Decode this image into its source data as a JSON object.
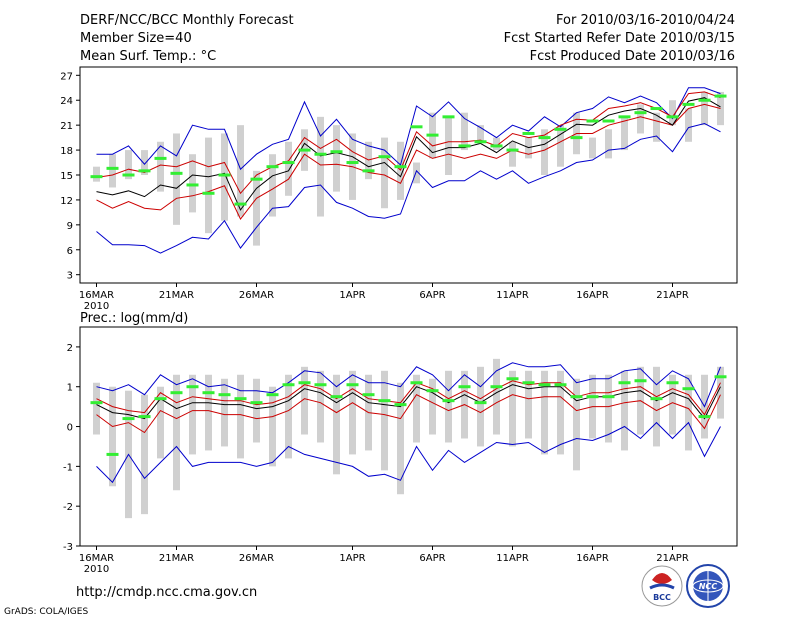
{
  "header": {
    "title": "DERF/NCC/BCC Monthly Forecast",
    "member_size": "Member Size=40",
    "variable": "Mean Surf. Temp.: °C",
    "period": "For 2010/03/16-2010/04/24",
    "start_date": "Fcst Started Refer Date 2010/03/15",
    "produced_date": "Fcst Produced Date 2010/03/16"
  },
  "footer": {
    "url": "http://cmdp.ncc.cma.gov.cn",
    "credit": "GrADS: COLA/IGES",
    "logo_left_text": "BCC",
    "logo_right_text": "NCC"
  },
  "colors": {
    "whisker": "#d0d0d0",
    "mean": "#000000",
    "band_inner": "#cc0000",
    "band_outer": "#0000cc",
    "median": "#33ee33"
  },
  "chart_data": [
    {
      "type": "line",
      "title": "Mean Surf. Temp.: °C",
      "ylim": [
        2,
        28
      ],
      "yticks": [
        3,
        6,
        9,
        12,
        15,
        18,
        21,
        24,
        27
      ],
      "xtick_labels": [
        "16MAR",
        "21MAR",
        "26MAR",
        "1APR",
        "6APR",
        "11APR",
        "16APR",
        "21APR"
      ],
      "year_label": "2010",
      "x": [
        1,
        2,
        3,
        4,
        5,
        6,
        7,
        8,
        9,
        10,
        11,
        12,
        13,
        14,
        15,
        16,
        17,
        18,
        19,
        20,
        21,
        22,
        23,
        24,
        25,
        26,
        27,
        28,
        29,
        30,
        31,
        32,
        33,
        34,
        35,
        36,
        37,
        38,
        39,
        40
      ],
      "series": [
        {
          "name": "whisker_low",
          "values": [
            14.2,
            13.5,
            14.5,
            15.0,
            13.0,
            9.0,
            10.5,
            8.0,
            9.5,
            10.0,
            6.5,
            10.0,
            12.5,
            15.5,
            10.0,
            13.0,
            12.0,
            14.5,
            11.0,
            12.0,
            14.0,
            17.0,
            15.0,
            18.0,
            19.0,
            18.0,
            16.0,
            17.0,
            15.0,
            16.0,
            17.5,
            17.0,
            17.0,
            18.0,
            20.0,
            19.0,
            21.0,
            19.0,
            21.0,
            21.0
          ]
        },
        {
          "name": "whisker_high",
          "values": [
            16.0,
            17.5,
            18.0,
            18.0,
            19.0,
            20.0,
            17.5,
            19.5,
            20.0,
            21.0,
            15.5,
            17.5,
            19.0,
            20.5,
            22.0,
            21.0,
            20.0,
            19.0,
            19.5,
            19.0,
            16.5,
            22.5,
            22.0,
            22.5,
            21.0,
            19.5,
            19.0,
            19.5,
            20.5,
            21.0,
            22.5,
            19.5,
            20.5,
            22.0,
            23.5,
            22.5,
            24.0,
            23.0,
            25.0,
            25.0
          ]
        },
        {
          "name": "lower_bound",
          "values": [
            8.2,
            6.6,
            6.6,
            6.5,
            5.6,
            6.5,
            7.5,
            7.3,
            9.5,
            6.2,
            8.7,
            11.0,
            11.2,
            13.5,
            13.8,
            11.7,
            11.0,
            10.0,
            9.8,
            10.3,
            15.5,
            13.5,
            14.3,
            14.3,
            15.5,
            14.5,
            15.5,
            14.0,
            14.8,
            15.5,
            16.5,
            16.8,
            18.0,
            18.2,
            19.3,
            19.7,
            17.8,
            20.7,
            21.2,
            20.2
          ]
        },
        {
          "name": "inner_low",
          "values": [
            12.0,
            11.0,
            11.8,
            11.0,
            10.8,
            12.2,
            12.5,
            13.0,
            13.7,
            9.7,
            12.2,
            13.3,
            14.5,
            17.5,
            16.2,
            16.3,
            16.0,
            15.3,
            15.0,
            14.0,
            18.0,
            17.0,
            17.5,
            17.0,
            17.5,
            17.0,
            18.0,
            17.5,
            18.0,
            19.0,
            20.0,
            20.0,
            21.0,
            21.5,
            22.0,
            21.5,
            21.0,
            23.0,
            23.5,
            23.0
          ]
        },
        {
          "name": "mean",
          "values": [
            13.0,
            12.6,
            13.1,
            12.4,
            13.8,
            13.4,
            15.0,
            14.8,
            15.2,
            10.8,
            13.4,
            14.9,
            15.5,
            18.8,
            17.3,
            17.7,
            17.2,
            16.0,
            16.5,
            14.8,
            19.6,
            17.7,
            18.3,
            18.3,
            18.8,
            17.7,
            19.1,
            18.3,
            18.7,
            19.9,
            21.1,
            21.0,
            22.2,
            22.7,
            23.0,
            22.2,
            21.0,
            23.9,
            24.3,
            23.2
          ]
        },
        {
          "name": "inner_high",
          "values": [
            14.7,
            15.0,
            15.7,
            15.3,
            16.2,
            16.0,
            16.7,
            16.0,
            16.5,
            12.8,
            15.0,
            16.0,
            16.7,
            19.5,
            18.2,
            19.3,
            17.8,
            16.8,
            17.3,
            15.6,
            20.2,
            18.5,
            19.0,
            19.0,
            19.2,
            18.5,
            20.0,
            19.5,
            19.8,
            21.0,
            21.7,
            21.6,
            23.0,
            23.3,
            23.7,
            23.0,
            22.0,
            24.8,
            25.0,
            24.3
          ]
        },
        {
          "name": "upper_bound",
          "values": [
            17.5,
            17.5,
            18.5,
            16.3,
            18.5,
            17.3,
            21.0,
            20.5,
            20.5,
            15.7,
            17.5,
            18.7,
            19.3,
            23.8,
            19.7,
            21.7,
            19.3,
            18.5,
            18.0,
            16.2,
            23.3,
            22.0,
            23.8,
            21.8,
            20.7,
            19.5,
            21.0,
            20.3,
            22.0,
            20.8,
            22.5,
            23.0,
            24.4,
            23.7,
            24.5,
            23.7,
            21.8,
            25.5,
            25.5,
            24.8
          ]
        },
        {
          "name": "median",
          "values": [
            14.8,
            15.8,
            15.0,
            15.5,
            17.0,
            15.2,
            13.8,
            12.8,
            15.0,
            11.5,
            14.5,
            16.0,
            16.5,
            18.0,
            17.5,
            17.8,
            16.5,
            15.5,
            17.2,
            16.0,
            20.8,
            19.8,
            22.0,
            18.5,
            19.0,
            18.5,
            18.0,
            20.0,
            19.5,
            20.5,
            19.5,
            21.5,
            21.5,
            22.0,
            22.5,
            23.0,
            22.0,
            23.5,
            24.0,
            24.5
          ]
        }
      ]
    },
    {
      "type": "line",
      "title": "Prec.: log(mm/d)",
      "ylim": [
        -3,
        2.5
      ],
      "yticks": [
        -3,
        -2,
        -1,
        0,
        1,
        2
      ],
      "xtick_labels": [
        "16MAR",
        "21MAR",
        "26MAR",
        "1APR",
        "6APR",
        "11APR",
        "16APR",
        "21APR"
      ],
      "year_label": "2010",
      "x": [
        1,
        2,
        3,
        4,
        5,
        6,
        7,
        8,
        9,
        10,
        11,
        12,
        13,
        14,
        15,
        16,
        17,
        18,
        19,
        20,
        21,
        22,
        23,
        24,
        25,
        26,
        27,
        28,
        29,
        30,
        31,
        32,
        33,
        34,
        35,
        36,
        37,
        38,
        39,
        40
      ],
      "series": [
        {
          "name": "whisker_low",
          "values": [
            -0.2,
            -1.5,
            -2.3,
            -2.2,
            -0.8,
            -1.6,
            -0.7,
            -0.6,
            -0.5,
            -0.8,
            -0.4,
            -1.0,
            -0.8,
            -0.2,
            -0.4,
            -1.2,
            -0.7,
            -0.6,
            -1.1,
            -1.7,
            -0.4,
            -0.2,
            -0.4,
            -0.3,
            -0.5,
            -0.2,
            -0.5,
            -0.3,
            -0.7,
            -0.7,
            -1.1,
            -0.3,
            -0.4,
            -0.6,
            -0.2,
            -0.5,
            -0.2,
            -0.6,
            -0.3,
            0.2
          ]
        },
        {
          "name": "whisker_high",
          "values": [
            1.1,
            1.0,
            0.9,
            0.8,
            1.0,
            1.3,
            1.3,
            1.3,
            1.2,
            1.3,
            1.2,
            1.0,
            1.3,
            1.5,
            1.4,
            1.3,
            1.4,
            1.3,
            1.4,
            1.1,
            1.3,
            1.2,
            1.4,
            1.4,
            1.5,
            1.7,
            1.4,
            1.4,
            1.4,
            1.4,
            1.2,
            1.3,
            1.3,
            1.4,
            1.5,
            1.5,
            1.3,
            1.3,
            1.3,
            1.5
          ]
        },
        {
          "name": "lower_bound",
          "values": [
            -1.0,
            -1.4,
            -0.7,
            -1.3,
            -0.9,
            -0.5,
            -1.0,
            -0.9,
            -0.9,
            -0.9,
            -1.0,
            -0.9,
            -0.5,
            -0.7,
            -0.8,
            -0.9,
            -1.0,
            -1.25,
            -1.2,
            -1.35,
            -0.5,
            -1.1,
            -0.6,
            -0.9,
            -0.65,
            -0.4,
            -0.45,
            -0.4,
            -0.65,
            -0.45,
            -0.3,
            -0.35,
            -0.2,
            0.0,
            -0.3,
            0.1,
            -0.3,
            0.1,
            -0.75,
            0.0
          ]
        },
        {
          "name": "inner_low",
          "values": [
            0.3,
            0.0,
            0.1,
            -0.15,
            0.4,
            0.2,
            0.4,
            0.4,
            0.3,
            0.3,
            0.2,
            0.25,
            0.4,
            0.7,
            0.6,
            0.35,
            0.6,
            0.35,
            0.3,
            0.2,
            0.8,
            0.6,
            0.4,
            0.55,
            0.35,
            0.6,
            0.8,
            0.7,
            0.75,
            0.75,
            0.4,
            0.5,
            0.5,
            0.6,
            0.65,
            0.4,
            0.6,
            0.45,
            -0.05,
            0.8
          ]
        },
        {
          "name": "mean",
          "values": [
            0.55,
            0.35,
            0.3,
            0.2,
            0.7,
            0.45,
            0.6,
            0.6,
            0.55,
            0.55,
            0.45,
            0.5,
            0.65,
            0.95,
            0.85,
            0.6,
            0.85,
            0.6,
            0.55,
            0.5,
            1.0,
            0.85,
            0.6,
            0.8,
            0.6,
            0.85,
            1.05,
            0.95,
            1.0,
            1.0,
            0.65,
            0.75,
            0.75,
            0.85,
            0.9,
            0.65,
            0.85,
            0.7,
            0.2,
            1.0
          ]
        },
        {
          "name": "inner_high",
          "values": [
            0.7,
            0.5,
            0.4,
            0.35,
            0.85,
            0.6,
            0.75,
            0.7,
            0.65,
            0.65,
            0.55,
            0.6,
            0.75,
            1.05,
            0.95,
            0.7,
            0.95,
            0.7,
            0.65,
            0.6,
            1.1,
            0.95,
            0.7,
            0.9,
            0.7,
            0.95,
            1.15,
            1.05,
            1.1,
            1.1,
            0.75,
            0.85,
            0.85,
            0.95,
            1.0,
            0.75,
            0.95,
            0.8,
            0.3,
            1.1
          ]
        },
        {
          "name": "upper_bound",
          "values": [
            1.0,
            0.9,
            1.05,
            0.8,
            1.3,
            1.05,
            1.2,
            1.0,
            1.05,
            0.9,
            0.9,
            0.85,
            1.1,
            1.4,
            1.35,
            1.0,
            1.3,
            1.1,
            1.1,
            1.0,
            1.5,
            1.3,
            0.9,
            1.3,
            1.0,
            1.4,
            1.6,
            1.5,
            1.5,
            1.55,
            1.1,
            1.2,
            1.2,
            1.4,
            1.45,
            1.05,
            1.4,
            1.2,
            0.5,
            1.5
          ]
        },
        {
          "name": "median",
          "values": [
            0.6,
            -0.7,
            0.2,
            0.25,
            0.7,
            0.85,
            1.0,
            0.85,
            0.8,
            0.7,
            0.6,
            0.8,
            1.05,
            1.1,
            1.05,
            0.75,
            1.05,
            0.8,
            0.65,
            0.55,
            1.1,
            0.9,
            0.65,
            1.0,
            0.6,
            1.0,
            1.2,
            1.1,
            1.05,
            1.05,
            0.75,
            0.75,
            0.75,
            1.1,
            1.15,
            0.7,
            1.1,
            0.95,
            0.25,
            1.25
          ]
        }
      ]
    }
  ]
}
